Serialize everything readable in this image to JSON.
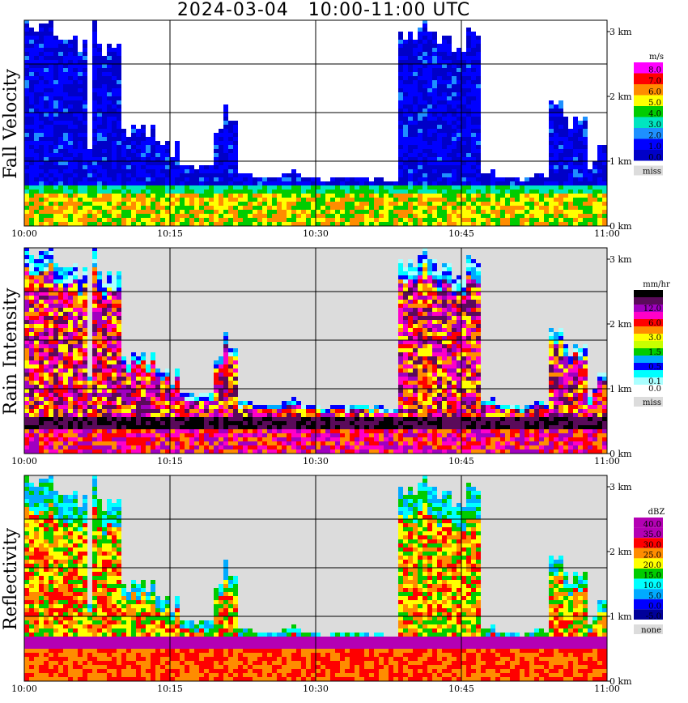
{
  "title": "2024-03-04   10:00-11:00 UTC",
  "chart_data": {
    "type": "heatmap",
    "x_ticks": [
      "10:00",
      "10:15",
      "10:30",
      "10:45",
      "11:00"
    ],
    "y_ticks": [
      "0 km",
      "1 km",
      "2 km",
      "3 km"
    ],
    "xlim": [
      "10:00",
      "11:00"
    ],
    "ylim": [
      0,
      3
    ],
    "grid": true,
    "panels": [
      {
        "ylabel": "Fall Velocity",
        "unit": "m/s",
        "missing_color": "#dcdcdc",
        "background": "#ffffff",
        "colorbar": [
          {
            "label": "8.0",
            "color": "#ff00ff"
          },
          {
            "label": "7.0",
            "color": "#ff0000"
          },
          {
            "label": "6.0",
            "color": "#ff8c00"
          },
          {
            "label": "5.0",
            "color": "#ffff00"
          },
          {
            "label": "4.0",
            "color": "#00cc00"
          },
          {
            "label": "3.0",
            "color": "#00e5c0"
          },
          {
            "label": "2.0",
            "color": "#1e90ff"
          },
          {
            "label": "1.0",
            "color": "#0000ff"
          },
          {
            "label": "0.0",
            "color": "#0000c8"
          }
        ],
        "missing_label": "miss"
      },
      {
        "ylabel": "Rain Intensity",
        "unit": "mm/hr",
        "missing_color": "#dcdcdc",
        "background": "#dcdcdc",
        "colorbar": [
          {
            "label": "48.0",
            "color": "#000000"
          },
          {
            "label": "",
            "color": "#5a0a5a"
          },
          {
            "label": "12.0",
            "color": "#a000c0"
          },
          {
            "label": "",
            "color": "#ff00c8"
          },
          {
            "label": "6.0",
            "color": "#ff0000"
          },
          {
            "label": "",
            "color": "#ff8c00"
          },
          {
            "label": "3.0",
            "color": "#ffff00"
          },
          {
            "label": "",
            "color": "#c8ff00"
          },
          {
            "label": "1.5",
            "color": "#00cc00"
          },
          {
            "label": "",
            "color": "#00aaff"
          },
          {
            "label": "0.5",
            "color": "#0000ff"
          },
          {
            "label": "",
            "color": "#00ffff"
          },
          {
            "label": "0.1",
            "color": "#aaffff"
          },
          {
            "label": "0.0",
            "color": "#ffffff"
          }
        ],
        "missing_label": "miss"
      },
      {
        "ylabel": "Reflectivity",
        "unit": "dBZ",
        "missing_color": "#dcdcdc",
        "background": "#dcdcdc",
        "colorbar": [
          {
            "label": "40.0",
            "color": "#b400b4"
          },
          {
            "label": "35.0",
            "color": "#b400b4"
          },
          {
            "label": "30.0",
            "color": "#ff0000"
          },
          {
            "label": "25.0",
            "color": "#ff8c00"
          },
          {
            "label": "20.0",
            "color": "#ffff00"
          },
          {
            "label": "15.0",
            "color": "#00cc00"
          },
          {
            "label": "10.0",
            "color": "#00ffff"
          },
          {
            "label": "5.0",
            "color": "#00aaff"
          },
          {
            "label": "0.0",
            "color": "#0000ff"
          },
          {
            "label": "-5.0",
            "color": "#00009a"
          }
        ],
        "missing_label": "none"
      }
    ]
  }
}
